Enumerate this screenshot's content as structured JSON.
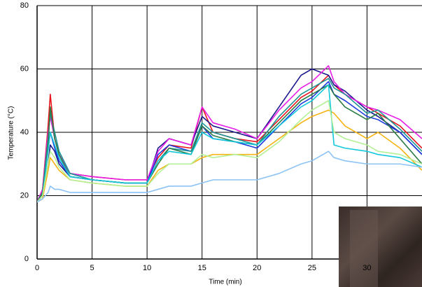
{
  "chart_data": {
    "type": "line",
    "xlabel": "Time (min)",
    "ylabel": "Temperature (°C)",
    "x": [
      0,
      0.5,
      1,
      1.2,
      1.6,
      2,
      3,
      5,
      8,
      10,
      11,
      12,
      14,
      15,
      16,
      18,
      20,
      22,
      24,
      25,
      26.5,
      27,
      28,
      30,
      31,
      33,
      35
    ],
    "series": [
      {
        "color": "#e8141e",
        "values": [
          18,
          22,
          42,
          52,
          38,
          33,
          27,
          26,
          25,
          25,
          32,
          36,
          35,
          48,
          40,
          38,
          37,
          44,
          51,
          53,
          58,
          55,
          52,
          48,
          46,
          42,
          35
        ]
      },
      {
        "color": "#1a1a8c",
        "values": [
          18,
          20,
          30,
          36,
          34,
          30,
          26,
          25,
          24,
          24,
          35,
          38,
          36,
          45,
          42,
          40,
          38,
          48,
          58,
          60,
          58,
          55,
          53,
          47,
          45,
          40,
          33
        ]
      },
      {
        "color": "#e61ee6",
        "values": [
          18,
          22,
          40,
          45,
          38,
          33,
          27,
          26,
          25,
          25,
          34,
          38,
          36,
          48,
          43,
          41,
          38,
          47,
          54,
          56,
          61,
          56,
          52,
          48,
          47,
          44,
          38
        ]
      },
      {
        "color": "#1e3cdc",
        "values": [
          18,
          20,
          35,
          40,
          35,
          31,
          26,
          25,
          24,
          24,
          33,
          36,
          34,
          42,
          38,
          37,
          35,
          42,
          49,
          51,
          56,
          52,
          50,
          45,
          44,
          40,
          33
        ]
      },
      {
        "color": "#1e9696",
        "values": [
          18,
          21,
          38,
          46,
          40,
          34,
          27,
          25,
          24,
          24,
          31,
          35,
          34,
          43,
          40,
          38,
          36,
          45,
          52,
          54,
          57,
          54,
          52,
          46,
          47,
          41,
          34
        ]
      },
      {
        "color": "#2d7d46",
        "values": [
          18,
          21,
          36,
          48,
          38,
          33,
          26,
          25,
          24,
          24,
          30,
          35,
          33,
          42,
          39,
          37,
          36,
          43,
          50,
          52,
          55,
          52,
          48,
          44,
          46,
          38,
          30
        ]
      },
      {
        "color": "#f5b414",
        "values": [
          18,
          19,
          28,
          32,
          30,
          28,
          25,
          24,
          23,
          23,
          28,
          30,
          30,
          32,
          33,
          33,
          33,
          38,
          43,
          45,
          47,
          46,
          42,
          38,
          40,
          35,
          28
        ]
      },
      {
        "color": "#14c8dc",
        "values": [
          18,
          20,
          34,
          40,
          36,
          32,
          26,
          25,
          24,
          24,
          31,
          34,
          33,
          40,
          38,
          37,
          36,
          42,
          48,
          50,
          55,
          36,
          35,
          34,
          33,
          32,
          29
        ]
      },
      {
        "color": "#b4f096",
        "values": [
          18,
          20,
          30,
          34,
          32,
          29,
          25,
          24,
          23,
          23,
          27,
          30,
          30,
          33,
          32,
          33,
          32,
          37,
          44,
          47,
          50,
          40,
          38,
          36,
          34,
          33,
          30
        ]
      },
      {
        "color": "#8cc3f5",
        "values": [
          18,
          19,
          21,
          23,
          22,
          22,
          21,
          21,
          21,
          21,
          22,
          23,
          23,
          24,
          25,
          25,
          25,
          27,
          30,
          31,
          34,
          32,
          31,
          30,
          30,
          30,
          29
        ]
      }
    ],
    "xlim": [
      0,
      35
    ],
    "ylim": [
      0,
      80
    ],
    "xticks": [
      0,
      5,
      10,
      15,
      20,
      25,
      30
    ],
    "yticks": [
      0,
      20,
      40,
      60,
      80
    ],
    "grid": true
  }
}
